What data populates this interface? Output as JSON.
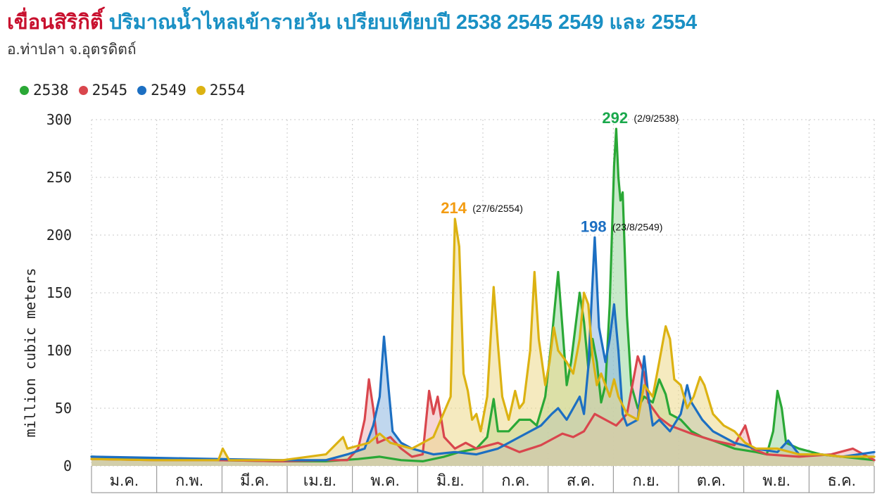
{
  "title": {
    "dam": "เขื่อนสิริกิติ์",
    "rest": "ปริมาณน้ำไหลเข้ารายวัน เปรียบเทียบปี 2538 2545 2549 และ 2554"
  },
  "subtitle": "อ.ท่าปลา จ.อุตรดิตถ์",
  "chart_data": {
    "type": "area",
    "ylabel": "million cubic meters",
    "ylim": [
      0,
      300
    ],
    "yticks": [
      0,
      50,
      100,
      150,
      200,
      250,
      300
    ],
    "months": [
      "ม.ค.",
      "ก.พ.",
      "มี.ค.",
      "เม.ย.",
      "พ.ค.",
      "มิ.ย.",
      "ก.ค.",
      "ส.ค.",
      "ก.ย.",
      "ต.ค.",
      "พ.ย.",
      "ธ.ค."
    ],
    "x_unit": "day of year",
    "series": [
      {
        "name": "2538",
        "color": "#2aa836",
        "fill": "#9bd79e",
        "points": [
          [
            1,
            8
          ],
          [
            30,
            6
          ],
          [
            60,
            5
          ],
          [
            90,
            4
          ],
          [
            110,
            4
          ],
          [
            125,
            6
          ],
          [
            135,
            8
          ],
          [
            145,
            5
          ],
          [
            155,
            4
          ],
          [
            165,
            8
          ],
          [
            172,
            12
          ],
          [
            180,
            15
          ],
          [
            185,
            25
          ],
          [
            188,
            58
          ],
          [
            190,
            30
          ],
          [
            195,
            30
          ],
          [
            200,
            40
          ],
          [
            205,
            40
          ],
          [
            208,
            35
          ],
          [
            212,
            60
          ],
          [
            215,
            110
          ],
          [
            218,
            168
          ],
          [
            220,
            120
          ],
          [
            222,
            70
          ],
          [
            224,
            90
          ],
          [
            226,
            120
          ],
          [
            228,
            150
          ],
          [
            230,
            125
          ],
          [
            232,
            85
          ],
          [
            234,
            110
          ],
          [
            236,
            90
          ],
          [
            238,
            55
          ],
          [
            240,
            70
          ],
          [
            242,
            140
          ],
          [
            244,
            260
          ],
          [
            245,
            292
          ],
          [
            246,
            250
          ],
          [
            247,
            230
          ],
          [
            248,
            237
          ],
          [
            250,
            130
          ],
          [
            252,
            70
          ],
          [
            255,
            50
          ],
          [
            258,
            60
          ],
          [
            262,
            55
          ],
          [
            265,
            75
          ],
          [
            268,
            62
          ],
          [
            270,
            45
          ],
          [
            275,
            40
          ],
          [
            280,
            30
          ],
          [
            285,
            25
          ],
          [
            290,
            22
          ],
          [
            300,
            15
          ],
          [
            310,
            12
          ],
          [
            315,
            10
          ],
          [
            318,
            30
          ],
          [
            320,
            65
          ],
          [
            322,
            50
          ],
          [
            324,
            20
          ],
          [
            330,
            15
          ],
          [
            340,
            10
          ],
          [
            350,
            8
          ],
          [
            365,
            5
          ]
        ]
      },
      {
        "name": "2545",
        "color": "#d9464d",
        "fill": "#eeb5b6",
        "points": [
          [
            1,
            6
          ],
          [
            30,
            5
          ],
          [
            60,
            5
          ],
          [
            90,
            4
          ],
          [
            110,
            5
          ],
          [
            120,
            5
          ],
          [
            125,
            15
          ],
          [
            128,
            40
          ],
          [
            130,
            75
          ],
          [
            132,
            50
          ],
          [
            134,
            20
          ],
          [
            140,
            25
          ],
          [
            145,
            15
          ],
          [
            150,
            8
          ],
          [
            155,
            10
          ],
          [
            158,
            65
          ],
          [
            160,
            45
          ],
          [
            162,
            60
          ],
          [
            165,
            25
          ],
          [
            170,
            15
          ],
          [
            175,
            20
          ],
          [
            180,
            15
          ],
          [
            190,
            20
          ],
          [
            200,
            12
          ],
          [
            210,
            18
          ],
          [
            220,
            28
          ],
          [
            225,
            25
          ],
          [
            230,
            30
          ],
          [
            235,
            45
          ],
          [
            240,
            40
          ],
          [
            245,
            35
          ],
          [
            250,
            45
          ],
          [
            255,
            95
          ],
          [
            258,
            80
          ],
          [
            260,
            55
          ],
          [
            265,
            42
          ],
          [
            270,
            35
          ],
          [
            280,
            28
          ],
          [
            290,
            22
          ],
          [
            300,
            18
          ],
          [
            305,
            35
          ],
          [
            308,
            15
          ],
          [
            315,
            10
          ],
          [
            330,
            8
          ],
          [
            345,
            10
          ],
          [
            355,
            15
          ],
          [
            365,
            5
          ]
        ]
      },
      {
        "name": "2549",
        "color": "#1c6fc2",
        "fill": "#8db6e0",
        "points": [
          [
            1,
            8
          ],
          [
            30,
            7
          ],
          [
            60,
            6
          ],
          [
            90,
            5
          ],
          [
            110,
            5
          ],
          [
            120,
            10
          ],
          [
            128,
            15
          ],
          [
            132,
            35
          ],
          [
            135,
            60
          ],
          [
            137,
            112
          ],
          [
            139,
            70
          ],
          [
            141,
            30
          ],
          [
            145,
            20
          ],
          [
            150,
            15
          ],
          [
            160,
            10
          ],
          [
            170,
            12
          ],
          [
            180,
            10
          ],
          [
            190,
            15
          ],
          [
            200,
            25
          ],
          [
            210,
            35
          ],
          [
            215,
            45
          ],
          [
            218,
            50
          ],
          [
            222,
            40
          ],
          [
            225,
            50
          ],
          [
            228,
            60
          ],
          [
            230,
            45
          ],
          [
            232,
            85
          ],
          [
            235,
            198
          ],
          [
            237,
            120
          ],
          [
            240,
            90
          ],
          [
            242,
            110
          ],
          [
            244,
            140
          ],
          [
            246,
            100
          ],
          [
            248,
            45
          ],
          [
            250,
            35
          ],
          [
            255,
            40
          ],
          [
            258,
            95
          ],
          [
            260,
            60
          ],
          [
            262,
            35
          ],
          [
            265,
            40
          ],
          [
            270,
            30
          ],
          [
            275,
            45
          ],
          [
            278,
            70
          ],
          [
            280,
            55
          ],
          [
            285,
            40
          ],
          [
            290,
            30
          ],
          [
            300,
            20
          ],
          [
            310,
            15
          ],
          [
            320,
            12
          ],
          [
            325,
            22
          ],
          [
            330,
            10
          ],
          [
            340,
            10
          ],
          [
            350,
            8
          ],
          [
            365,
            12
          ]
        ]
      },
      {
        "name": "2554",
        "color": "#dcb212",
        "fill": "#ecd98a",
        "points": [
          [
            1,
            6
          ],
          [
            30,
            5
          ],
          [
            60,
            5
          ],
          [
            62,
            15
          ],
          [
            65,
            5
          ],
          [
            90,
            5
          ],
          [
            110,
            10
          ],
          [
            118,
            25
          ],
          [
            120,
            15
          ],
          [
            130,
            20
          ],
          [
            135,
            28
          ],
          [
            140,
            20
          ],
          [
            150,
            15
          ],
          [
            160,
            25
          ],
          [
            168,
            60
          ],
          [
            170,
            214
          ],
          [
            172,
            190
          ],
          [
            174,
            80
          ],
          [
            176,
            65
          ],
          [
            178,
            40
          ],
          [
            180,
            45
          ],
          [
            182,
            30
          ],
          [
            185,
            60
          ],
          [
            188,
            155
          ],
          [
            190,
            105
          ],
          [
            192,
            60
          ],
          [
            195,
            40
          ],
          [
            198,
            65
          ],
          [
            200,
            50
          ],
          [
            202,
            55
          ],
          [
            205,
            100
          ],
          [
            207,
            168
          ],
          [
            209,
            110
          ],
          [
            212,
            70
          ],
          [
            214,
            90
          ],
          [
            216,
            120
          ],
          [
            218,
            100
          ],
          [
            222,
            90
          ],
          [
            225,
            80
          ],
          [
            228,
            110
          ],
          [
            230,
            150
          ],
          [
            232,
            140
          ],
          [
            234,
            95
          ],
          [
            236,
            70
          ],
          [
            238,
            80
          ],
          [
            240,
            70
          ],
          [
            242,
            60
          ],
          [
            244,
            75
          ],
          [
            246,
            60
          ],
          [
            250,
            45
          ],
          [
            255,
            40
          ],
          [
            258,
            70
          ],
          [
            262,
            60
          ],
          [
            265,
            90
          ],
          [
            268,
            121
          ],
          [
            270,
            110
          ],
          [
            272,
            75
          ],
          [
            275,
            70
          ],
          [
            278,
            50
          ],
          [
            281,
            60
          ],
          [
            284,
            77
          ],
          [
            286,
            70
          ],
          [
            290,
            45
          ],
          [
            295,
            35
          ],
          [
            300,
            30
          ],
          [
            305,
            20
          ],
          [
            310,
            15
          ],
          [
            320,
            15
          ],
          [
            330,
            10
          ],
          [
            340,
            10
          ],
          [
            350,
            8
          ],
          [
            365,
            8
          ]
        ]
      }
    ],
    "annotations": [
      {
        "series": "2538",
        "value": "292",
        "date": "(2/9/2538)",
        "day": 245,
        "y": 292,
        "color": "#1aa84c"
      },
      {
        "series": "2554",
        "value": "214",
        "date": "(27/6/2554)",
        "day": 170,
        "y": 214,
        "color": "#f39c12"
      },
      {
        "series": "2549",
        "value": "198",
        "date": "(23/8/2549)",
        "day": 235,
        "y": 198,
        "color": "#1c6fc2"
      }
    ]
  }
}
